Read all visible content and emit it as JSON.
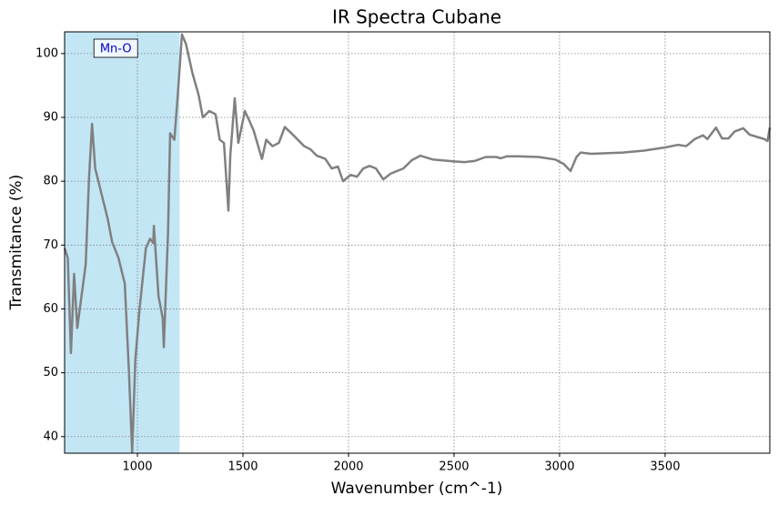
{
  "chart_data": {
    "type": "line",
    "title": "IR Spectra Cubane",
    "x_label": "Wavenumber (cm^-1)",
    "y_label": "Transmitance (%)",
    "x": [
      655,
      670,
      685,
      700,
      715,
      735,
      755,
      770,
      785,
      800,
      830,
      860,
      880,
      910,
      940,
      960,
      975,
      990,
      1010,
      1040,
      1060,
      1075,
      1078,
      1100,
      1120,
      1125,
      1145,
      1155,
      1175,
      1190,
      1211,
      1230,
      1260,
      1290,
      1310,
      1340,
      1370,
      1390,
      1410,
      1431,
      1440,
      1461,
      1478,
      1509,
      1530,
      1550,
      1590,
      1610,
      1640,
      1670,
      1698,
      1730,
      1760,
      1790,
      1820,
      1850,
      1890,
      1920,
      1950,
      1974,
      2010,
      2040,
      2070,
      2100,
      2130,
      2165,
      2200,
      2260,
      2300,
      2340,
      2400,
      2500,
      2550,
      2600,
      2650,
      2700,
      2720,
      2750,
      2800,
      2900,
      2980,
      3020,
      3052,
      3080,
      3100,
      3150,
      3300,
      3400,
      3500,
      3560,
      3600,
      3640,
      3680,
      3700,
      3741,
      3770,
      3800,
      3830,
      3870,
      3900,
      3940,
      3970,
      3985,
      3996
    ],
    "values": [
      69.5,
      68,
      53.1,
      65.5,
      57,
      62,
      67,
      80,
      89,
      82,
      78,
      74,
      70.5,
      68,
      64,
      50,
      37.5,
      52,
      60,
      69.5,
      71,
      70.3,
      73,
      62,
      58.5,
      54,
      72,
      87.5,
      86.5,
      93,
      103,
      101.5,
      97,
      93.5,
      90,
      91,
      90.5,
      86.5,
      86,
      75.4,
      84,
      93,
      86,
      91,
      89.5,
      88,
      83.5,
      86.5,
      85.5,
      86,
      88.5,
      87.5,
      86.5,
      85.5,
      85,
      84,
      83.5,
      82,
      82.3,
      80,
      81,
      80.7,
      82,
      82.4,
      82,
      80.3,
      81.2,
      82,
      83.3,
      84,
      83.4,
      83.1,
      83,
      83.2,
      83.8,
      83.8,
      83.6,
      83.9,
      83.9,
      83.8,
      83.4,
      82.7,
      81.6,
      83.8,
      84.5,
      84.3,
      84.5,
      84.8,
      85.3,
      85.7,
      85.5,
      86.6,
      87.2,
      86.6,
      88.4,
      86.7,
      86.7,
      87.8,
      88.3,
      87.3,
      86.9,
      86.6,
      86.3,
      88.4
    ],
    "color": "#808080",
    "highlight": {
      "label": "Mn-O",
      "xmin": 655,
      "xmax": 1200,
      "color": "#87ceeb"
    },
    "xlim": [
      655,
      3996
    ],
    "xticks": [
      1000,
      1500,
      2000,
      2500,
      3000,
      3500
    ],
    "ylim": [
      37.4,
      103.4
    ],
    "yticks": [
      40,
      50,
      60,
      70,
      80,
      90,
      100
    ],
    "grid": true
  }
}
